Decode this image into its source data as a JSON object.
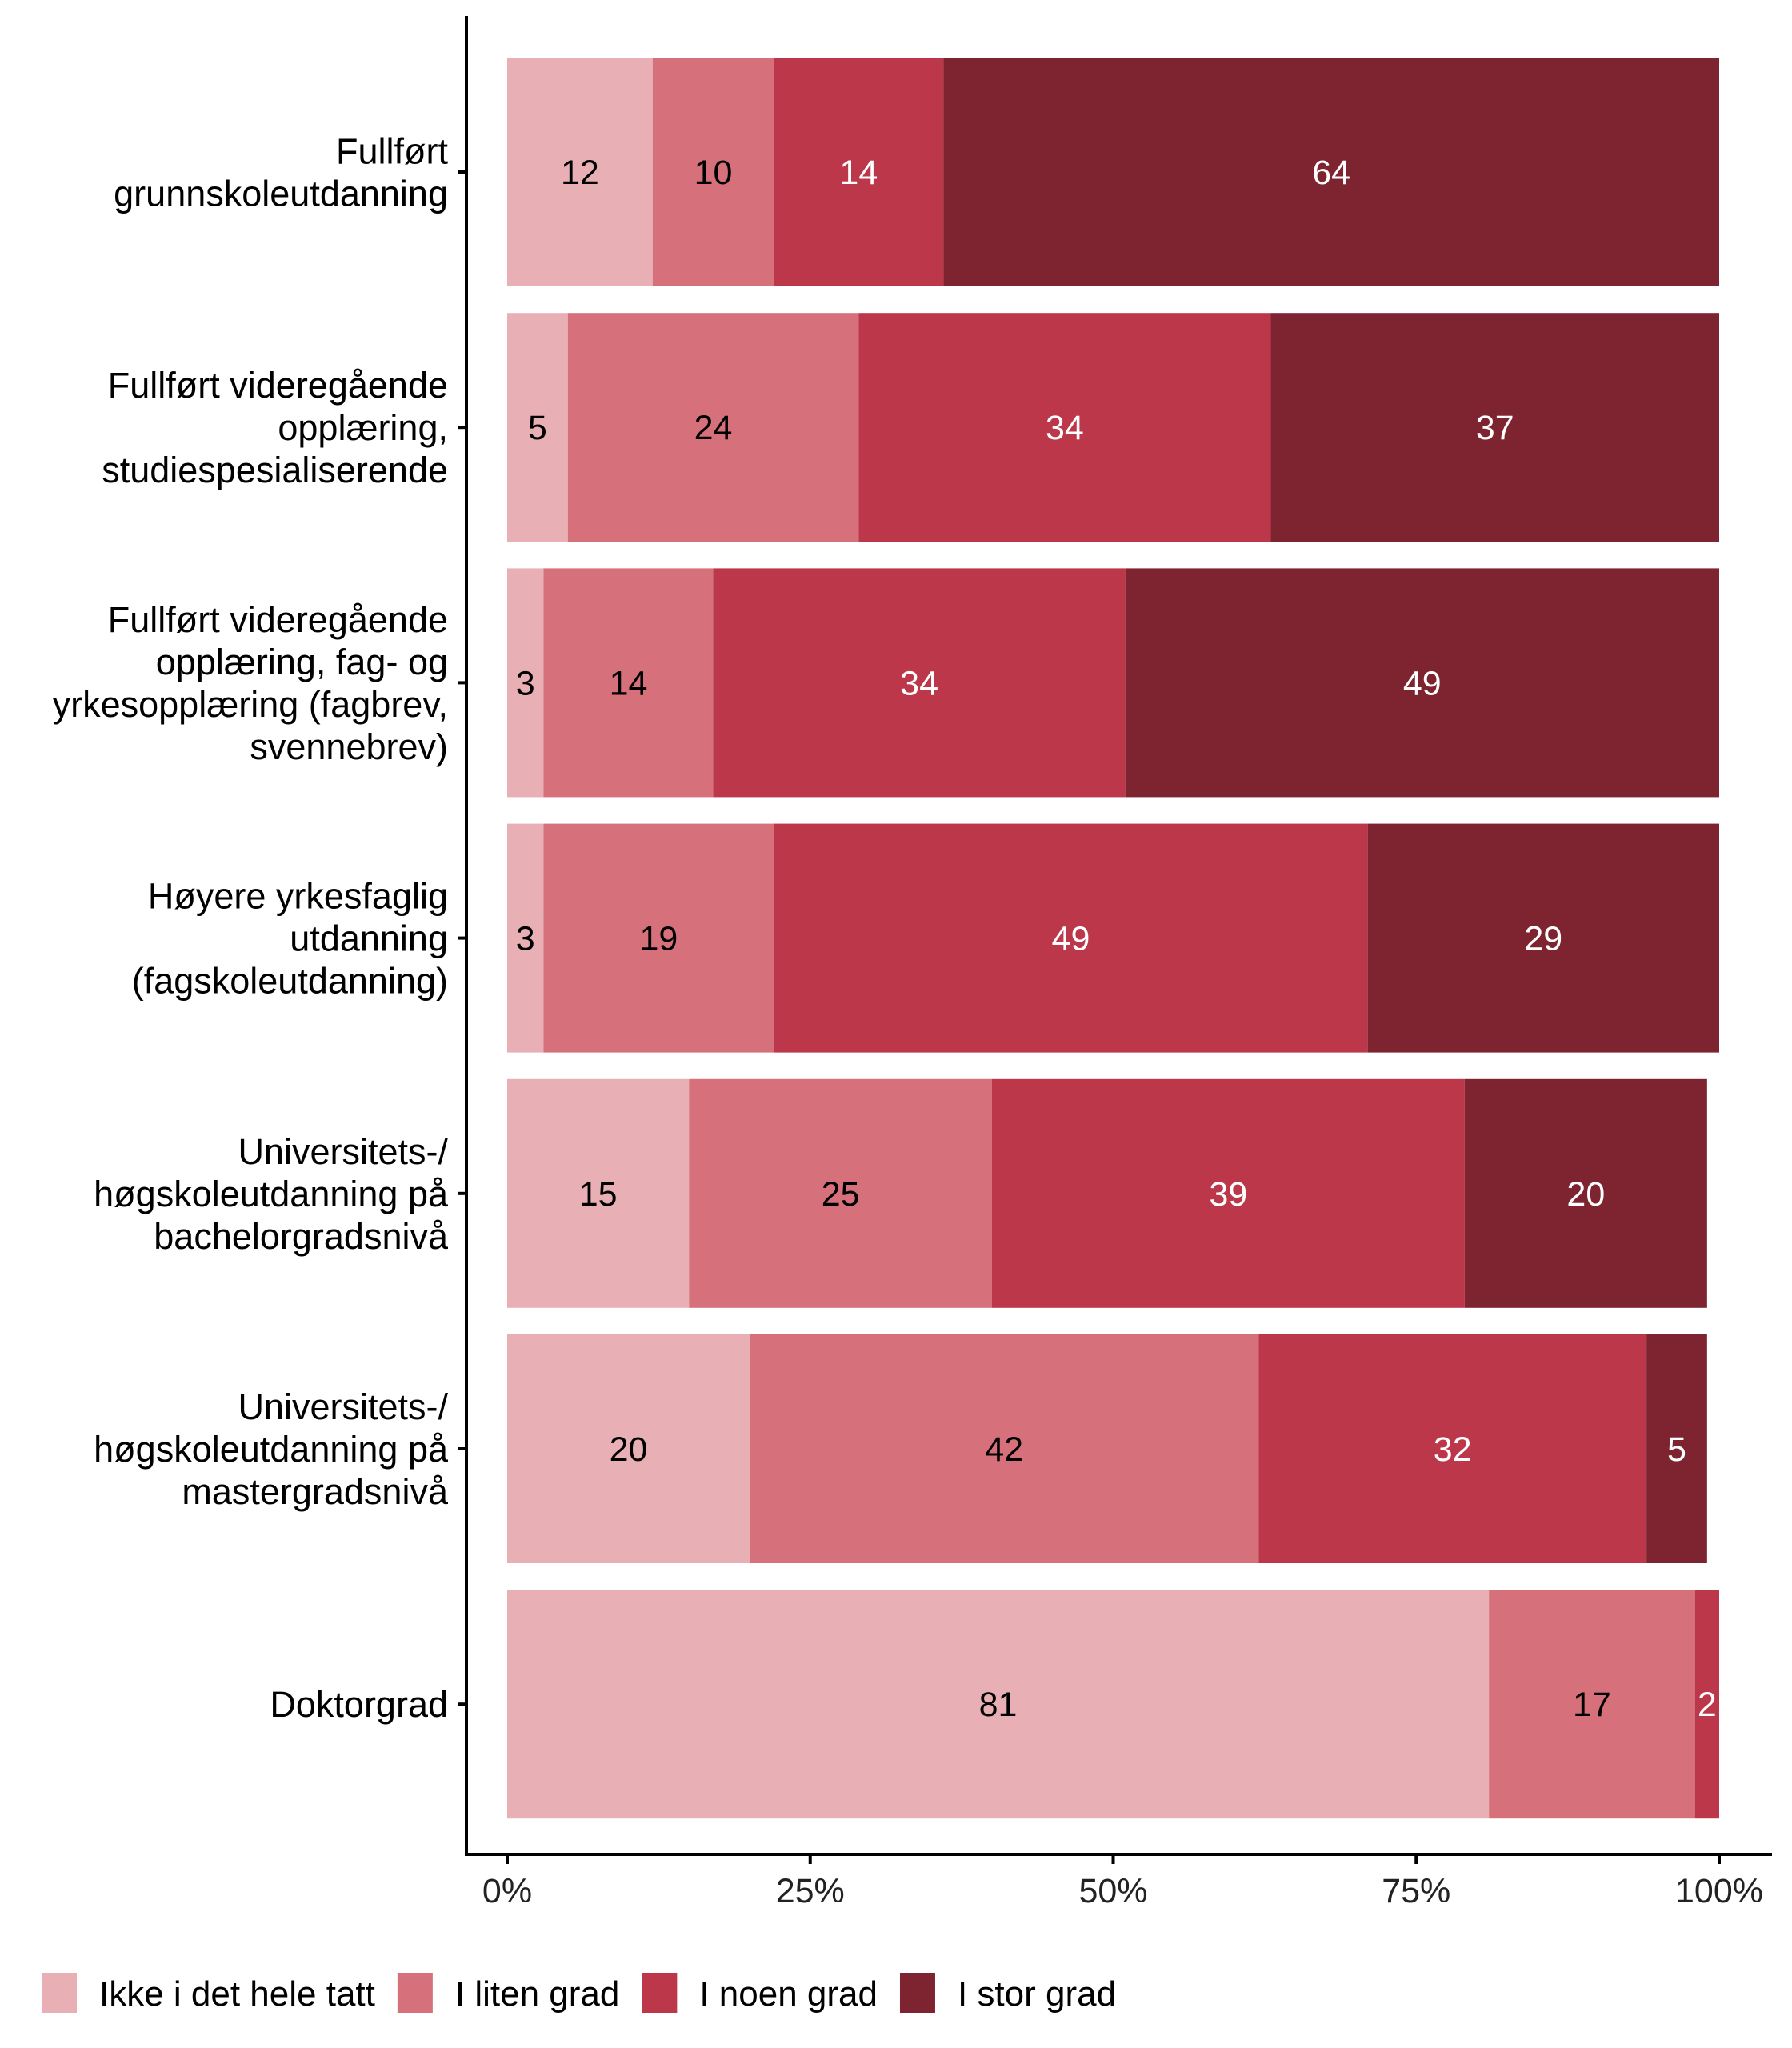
{
  "chart_data": {
    "type": "bar",
    "orientation": "horizontal",
    "stacked": true,
    "title": "",
    "xlabel": "",
    "ylabel": "",
    "xlim": [
      0,
      100
    ],
    "x_ticks": [
      "0%",
      "25%",
      "50%",
      "75%",
      "100%"
    ],
    "x_tick_values": [
      0,
      25,
      50,
      75,
      100
    ],
    "grid": false,
    "legend_position": "bottom-left",
    "categories": [
      [
        "Fullført",
        "grunnskoleutdanning"
      ],
      [
        "Fullført videregående",
        "opplæring,",
        "studiespesialiserende"
      ],
      [
        "Fullført videregående",
        "opplæring, fag- og",
        "yrkesopplæring (fagbrev,",
        "svennebrev)"
      ],
      [
        "Høyere yrkesfaglig",
        "utdanning",
        "(fagskoleutdanning)"
      ],
      [
        "Universitets-/",
        "høgskoleutdanning på",
        "bachelorgradsnivå"
      ],
      [
        "Universitets-/",
        "høgskoleutdanning på",
        "mastergradsnivå"
      ],
      [
        "Doktorgrad"
      ]
    ],
    "series": [
      {
        "name": "Ikke i det hele tatt",
        "color": "#E8B0B5",
        "label_color": "#000000",
        "values": [
          12,
          5,
          3,
          3,
          15,
          20,
          81
        ]
      },
      {
        "name": "I liten grad",
        "color": "#D6707B",
        "label_color": "#000000",
        "values": [
          10,
          24,
          14,
          19,
          25,
          42,
          17
        ]
      },
      {
        "name": "I noen grad",
        "color": "#BC374A",
        "label_color": "#FFFFFF",
        "values": [
          14,
          34,
          34,
          49,
          39,
          32,
          2
        ]
      },
      {
        "name": "I stor grad",
        "color": "#7E2430",
        "label_color": "#FFFFFF",
        "values": [
          64,
          37,
          49,
          29,
          20,
          5,
          0
        ]
      }
    ]
  }
}
